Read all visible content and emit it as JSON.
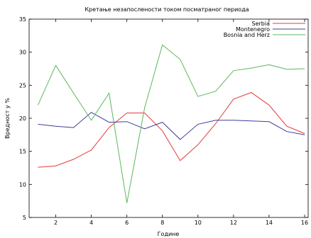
{
  "chart_data": {
    "type": "line",
    "title": "Кретање незапослености током посматраног периода",
    "xlabel": "Године",
    "ylabel": "Вредност у %",
    "x": [
      1,
      2,
      3,
      4,
      5,
      6,
      7,
      8,
      9,
      10,
      11,
      12,
      13,
      14,
      15,
      16
    ],
    "xlim": [
      0.5,
      16.2
    ],
    "ylim": [
      5,
      35
    ],
    "xticks": [
      2,
      4,
      6,
      8,
      10,
      12,
      14,
      16
    ],
    "yticks": [
      5,
      10,
      15,
      20,
      25,
      30,
      35
    ],
    "grid": false,
    "legend_position": "top-right",
    "series": [
      {
        "name": "Serbia",
        "color": "#e03c3c",
        "values": [
          12.6,
          12.8,
          13.8,
          15.2,
          18.6,
          20.8,
          20.8,
          18.1,
          13.6,
          16.0,
          19.2,
          22.9,
          23.9,
          22.0,
          18.8,
          17.7
        ]
      },
      {
        "name": "Montenegro",
        "color": "#3d3d9c",
        "values": [
          19.1,
          18.8,
          18.6,
          20.9,
          19.4,
          19.5,
          18.4,
          19.4,
          16.8,
          19.1,
          19.7,
          19.7,
          19.6,
          19.5,
          18.0,
          17.5
        ]
      },
      {
        "name": "Bosnia and Herz",
        "color": "#5cb85c",
        "values": [
          22.0,
          28.0,
          23.8,
          19.7,
          23.8,
          7.2,
          21.6,
          31.1,
          28.9,
          23.3,
          24.1,
          27.2,
          27.6,
          28.1,
          27.4,
          27.5
        ]
      }
    ]
  }
}
